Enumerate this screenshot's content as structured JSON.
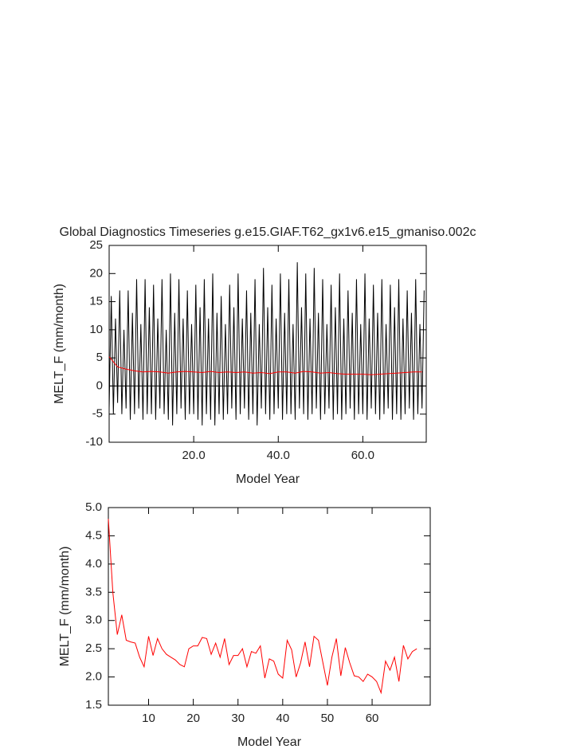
{
  "chart_data": [
    {
      "type": "line",
      "title": "Global Diagnostics Timeseries g.e15.GIAF.T62_gx1v6.e15_gmaniso.002c",
      "x_label": "Model Year",
      "y_label": "MELT_F (mm/month)",
      "xlim": [
        0,
        75
      ],
      "ylim": [
        -10,
        25
      ],
      "xticks": [
        {
          "value": 20,
          "label": "20.0"
        },
        {
          "value": 40,
          "label": "40.0"
        },
        {
          "value": 60,
          "label": "60.0"
        }
      ],
      "yticks": [
        -10,
        -5,
        0,
        5,
        10,
        15,
        20,
        25
      ],
      "zero_line": true,
      "series": [
        {
          "color": "#000000",
          "x": [
            0,
            0.5,
            1,
            1.5,
            2,
            2.5,
            3,
            3.5,
            4,
            4.5,
            5,
            5.5,
            6,
            6.5,
            7,
            7.5,
            8,
            8.5,
            9,
            9.5,
            10,
            10.5,
            11,
            11.5,
            12,
            12.5,
            13,
            13.5,
            14,
            14.5,
            15,
            15.5,
            16,
            16.5,
            17,
            17.5,
            18,
            18.5,
            19,
            19.5,
            20,
            20.5,
            21,
            21.5,
            22,
            22.5,
            23,
            23.5,
            24,
            24.5,
            25,
            25.5,
            26,
            26.5,
            27,
            27.5,
            28,
            28.5,
            29,
            29.5,
            30,
            30.5,
            31,
            31.5,
            32,
            32.5,
            33,
            33.5,
            34,
            34.5,
            35,
            35.5,
            36,
            36.5,
            37,
            37.5,
            38,
            38.5,
            39,
            39.5,
            40,
            40.5,
            41,
            41.5,
            42,
            42.5,
            43,
            43.5,
            44,
            44.5,
            45,
            45.5,
            46,
            46.5,
            47,
            47.5,
            48,
            48.5,
            49,
            49.5,
            50,
            50.5,
            51,
            51.5,
            52,
            52.5,
            53,
            53.5,
            54,
            54.5,
            55,
            55.5,
            56,
            56.5,
            57,
            57.5,
            58,
            58.5,
            59,
            59.5,
            60,
            60.5,
            61,
            61.5,
            62,
            62.5,
            63,
            63.5,
            64,
            64.5,
            65,
            65.5,
            66,
            66.5,
            67,
            67.5,
            68,
            68.5,
            69,
            69.5,
            70,
            70.5,
            71,
            71.5,
            72,
            72.5,
            73,
            73.5,
            74,
            74.5
          ],
          "values": [
            -4,
            16,
            -5,
            12,
            -3,
            17,
            -5,
            10,
            -4,
            17,
            -6,
            13,
            -5,
            19,
            -4,
            11,
            -6,
            19,
            -5,
            14,
            -5,
            18,
            -6,
            12,
            -4,
            19,
            -5,
            10,
            -6,
            20,
            -7,
            13,
            -5,
            19,
            -4,
            12,
            -6,
            17,
            -5,
            11,
            -5,
            18,
            -6,
            14,
            -7,
            19,
            -5,
            12,
            -6,
            20,
            -7,
            13,
            -5,
            16,
            -6,
            11,
            -5,
            18,
            -4,
            14,
            -6,
            20,
            -5,
            12,
            -4,
            17,
            -6,
            13,
            -5,
            19,
            -7,
            11,
            -4,
            21,
            -5,
            14,
            -6,
            18,
            -5,
            12,
            -4,
            20,
            -6,
            13,
            -5,
            19,
            -5,
            11,
            -6,
            22,
            -4,
            14,
            -5,
            20,
            -6,
            12,
            -5,
            21,
            -4,
            13,
            -6,
            19,
            -5,
            11,
            -4,
            18,
            -6,
            14,
            -5,
            20,
            -6,
            12,
            -5,
            17,
            -4,
            13,
            -6,
            19,
            -5,
            11,
            -5,
            20,
            -6,
            12,
            -4,
            18,
            -5,
            13,
            -6,
            19,
            -5,
            11,
            -4,
            18,
            -6,
            14,
            -5,
            19,
            -6,
            12,
            -5,
            17,
            -4,
            13,
            -6,
            19,
            -5,
            11,
            -4,
            17
          ]
        },
        {
          "color": "#ff0000",
          "x": [
            0,
            2,
            4,
            6,
            8,
            10,
            12,
            14,
            16,
            18,
            20,
            22,
            24,
            26,
            28,
            30,
            32,
            34,
            36,
            38,
            40,
            42,
            44,
            46,
            48,
            50,
            52,
            54,
            56,
            58,
            60,
            62,
            64,
            66,
            68,
            70,
            72,
            74
          ],
          "values": [
            5.2,
            3.4,
            3.0,
            2.7,
            2.5,
            2.6,
            2.5,
            2.3,
            2.5,
            2.6,
            2.5,
            2.4,
            2.6,
            2.4,
            2.5,
            2.4,
            2.5,
            2.3,
            2.4,
            2.2,
            2.5,
            2.5,
            2.3,
            2.6,
            2.5,
            2.3,
            2.4,
            2.2,
            2.1,
            2.1,
            2.1,
            2.0,
            2.1,
            2.2,
            2.3,
            2.4,
            2.5,
            2.5
          ]
        }
      ]
    },
    {
      "type": "line",
      "x_label": "Model Year",
      "y_label": "MELT_F (mm/month)",
      "xlim": [
        1,
        73
      ],
      "ylim": [
        1.5,
        5.0
      ],
      "xticks": [
        10,
        20,
        30,
        40,
        50,
        60
      ],
      "yticks": [
        1.5,
        {
          "value": 2,
          "label": "2.0"
        },
        2.5,
        {
          "value": 3,
          "label": "3.0"
        },
        3.5,
        {
          "value": 4,
          "label": "4.0"
        },
        4.5,
        {
          "value": 5,
          "label": "5.0"
        }
      ],
      "series": [
        {
          "color": "#ff0000",
          "x": [
            1,
            2,
            3,
            4,
            5,
            6,
            7,
            8,
            9,
            10,
            11,
            12,
            13,
            14,
            15,
            16,
            17,
            18,
            19,
            20,
            21,
            22,
            23,
            24,
            25,
            26,
            27,
            28,
            29,
            30,
            31,
            32,
            33,
            34,
            35,
            36,
            37,
            38,
            39,
            40,
            41,
            42,
            43,
            44,
            45,
            46,
            47,
            48,
            49,
            50,
            51,
            52,
            53,
            54,
            55,
            56,
            57,
            58,
            59,
            60,
            61,
            62,
            63,
            64,
            65,
            66,
            67,
            68,
            69,
            70
          ],
          "values": [
            4.8,
            3.5,
            2.75,
            3.1,
            2.65,
            2.62,
            2.6,
            2.35,
            2.18,
            2.72,
            2.38,
            2.68,
            2.5,
            2.4,
            2.35,
            2.3,
            2.22,
            2.18,
            2.5,
            2.55,
            2.55,
            2.7,
            2.68,
            2.4,
            2.6,
            2.35,
            2.68,
            2.22,
            2.38,
            2.38,
            2.5,
            2.18,
            2.45,
            2.42,
            2.55,
            1.98,
            2.32,
            2.28,
            2.05,
            1.98,
            2.65,
            2.48,
            2.0,
            2.25,
            2.62,
            2.18,
            2.72,
            2.65,
            2.25,
            1.85,
            2.35,
            2.68,
            2.02,
            2.52,
            2.25,
            2.02,
            2.0,
            1.92,
            2.05,
            2.0,
            1.92,
            1.72,
            2.28,
            2.12,
            2.35,
            1.92,
            2.56,
            2.32,
            2.45,
            2.5
          ]
        }
      ]
    }
  ]
}
